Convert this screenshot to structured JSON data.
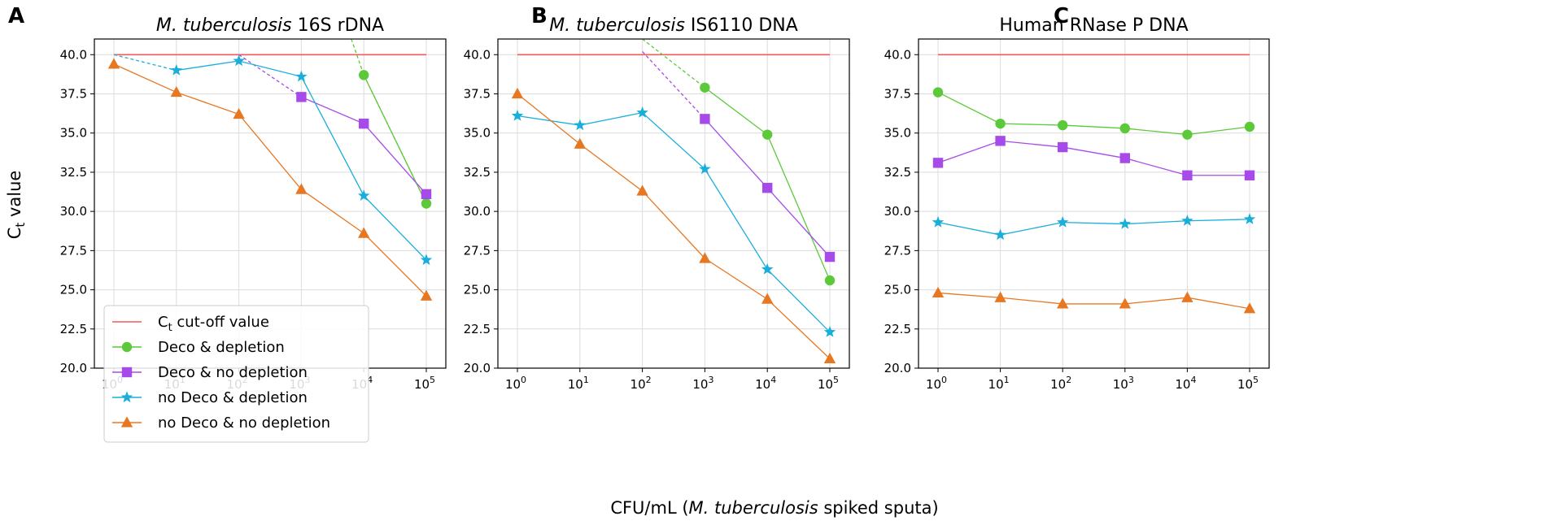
{
  "figure": {
    "shared_xlabel_pre": "CFU/mL (",
    "shared_xlabel_italic": "M. tuberculosis",
    "shared_xlabel_post": " spiked sputa)",
    "ylabel_main": "C",
    "ylabel_sub": "t",
    "ylabel_rest": " value",
    "legend": [
      {
        "label_main": "C",
        "label_sub": "t",
        "label_rest": " cut-off value",
        "color": "#f15b5b",
        "marker": "none"
      },
      {
        "label": "Deco & depletion",
        "color": "#5cc93a",
        "marker": "circle"
      },
      {
        "label": "Deco & no depletion",
        "color": "#a64bea",
        "marker": "square"
      },
      {
        "label": "no Deco & depletion",
        "color": "#1aaedb",
        "marker": "star"
      },
      {
        "label": "no Deco & no depletion",
        "color": "#e87722",
        "marker": "triangle"
      }
    ]
  },
  "chart_data": [
    {
      "type": "line",
      "panel_letter": "A",
      "title_italic": "M. tuberculosis",
      "title_rest": " 16S rDNA",
      "x_scale": "log10",
      "x_exponents": [
        0,
        1,
        2,
        3,
        4,
        5
      ],
      "x_tick_labels": [
        "10^0",
        "10^1",
        "10^2",
        "10^3",
        "10^4",
        "10^5"
      ],
      "ylim": [
        20.0,
        41.0
      ],
      "y_ticks": [
        "20.0",
        "22.5",
        "25.0",
        "27.5",
        "30.0",
        "32.5",
        "35.0",
        "37.5",
        "40.0"
      ],
      "grid": true,
      "legend_position": "lower-left",
      "cutoff": 40.0,
      "series": [
        {
          "name": "Deco & depletion",
          "values": [
            null,
            null,
            null,
            null,
            38.7,
            30.5
          ],
          "dashed": [
            {
              "from": [
                3.8,
                41.0
              ],
              "to": [
                4,
                38.7
              ]
            },
            {
              "from": [
                4,
                38.7
              ],
              "to": [
                5,
                30.5
              ]
            }
          ]
        },
        {
          "name": "Deco & no depletion",
          "values": [
            null,
            null,
            null,
            37.3,
            35.6,
            31.1
          ],
          "dashed": [
            {
              "from": [
                2,
                40.0
              ],
              "to": [
                3,
                37.3
              ]
            }
          ]
        },
        {
          "name": "no Deco & depletion",
          "values": [
            null,
            39.0,
            39.6,
            38.6,
            31.0,
            26.9
          ],
          "dashed": [
            {
              "from": [
                0,
                40.0
              ],
              "to": [
                1,
                39.0
              ]
            }
          ]
        },
        {
          "name": "no Deco & no depletion",
          "values": [
            39.4,
            37.6,
            36.2,
            31.4,
            28.6,
            24.6
          ],
          "dashed": []
        }
      ]
    },
    {
      "type": "line",
      "panel_letter": "B",
      "title_italic": "M. tuberculosis",
      "title_rest": " IS6110 DNA",
      "x_scale": "log10",
      "x_exponents": [
        0,
        1,
        2,
        3,
        4,
        5
      ],
      "x_tick_labels": [
        "10^0",
        "10^1",
        "10^2",
        "10^3",
        "10^4",
        "10^5"
      ],
      "ylim": [
        20.0,
        41.0
      ],
      "y_ticks": [
        "20.0",
        "22.5",
        "25.0",
        "27.5",
        "30.0",
        "32.5",
        "35.0",
        "37.5",
        "40.0"
      ],
      "grid": true,
      "cutoff": 40.0,
      "series": [
        {
          "name": "Deco & depletion",
          "values": [
            null,
            null,
            null,
            37.9,
            34.9,
            25.6
          ],
          "dashed": [
            {
              "from": [
                2,
                41.0
              ],
              "to": [
                3,
                37.9
              ]
            }
          ]
        },
        {
          "name": "Deco & no depletion",
          "values": [
            null,
            null,
            null,
            35.9,
            31.5,
            27.1
          ],
          "dashed": [
            {
              "from": [
                2,
                40.2
              ],
              "to": [
                3,
                35.9
              ]
            }
          ]
        },
        {
          "name": "no Deco & depletion",
          "values": [
            36.1,
            35.5,
            36.3,
            32.7,
            26.3,
            22.3
          ],
          "dashed": []
        },
        {
          "name": "no Deco & no depletion",
          "values": [
            37.5,
            34.3,
            31.3,
            27.0,
            24.4,
            20.6
          ],
          "dashed": []
        }
      ]
    },
    {
      "type": "line",
      "panel_letter": "C",
      "title_italic": "",
      "title_rest": "Human RNase P DNA",
      "x_scale": "log10",
      "x_exponents": [
        0,
        1,
        2,
        3,
        4,
        5
      ],
      "x_tick_labels": [
        "10^0",
        "10^1",
        "10^2",
        "10^3",
        "10^4",
        "10^5"
      ],
      "ylim": [
        20.0,
        41.0
      ],
      "y_ticks": [
        "20.0",
        "22.5",
        "25.0",
        "27.5",
        "30.0",
        "32.5",
        "35.0",
        "37.5",
        "40.0"
      ],
      "grid": true,
      "cutoff": 40.0,
      "series": [
        {
          "name": "Deco & depletion",
          "values": [
            37.6,
            35.6,
            35.5,
            35.3,
            34.9,
            35.4
          ],
          "dashed": []
        },
        {
          "name": "Deco & no depletion",
          "values": [
            33.1,
            34.5,
            34.1,
            33.4,
            32.3,
            32.3
          ],
          "dashed": []
        },
        {
          "name": "no Deco & depletion",
          "values": [
            29.3,
            28.5,
            29.3,
            29.2,
            29.4,
            29.5
          ],
          "dashed": []
        },
        {
          "name": "no Deco & no depletion",
          "values": [
            24.8,
            24.5,
            24.1,
            24.1,
            24.5,
            23.8
          ],
          "dashed": []
        }
      ]
    }
  ]
}
